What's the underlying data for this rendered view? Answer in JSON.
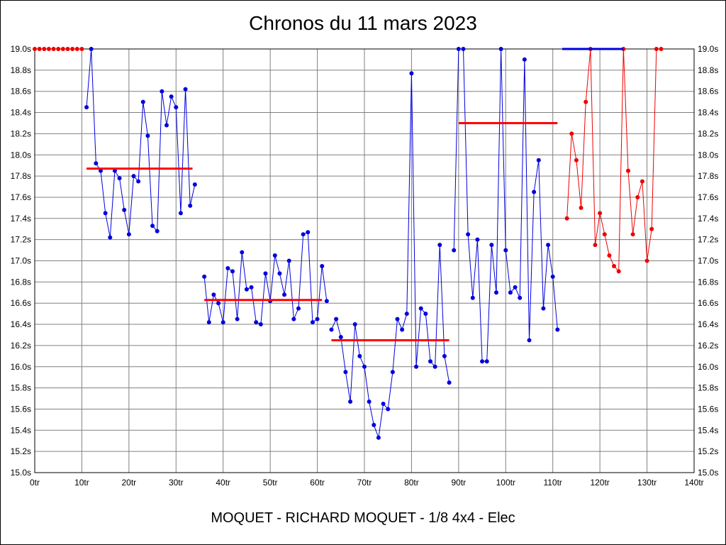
{
  "header": {
    "title": "Chronos du 11 mars 2023"
  },
  "footer": {
    "subtitle": "MOQUET - RICHARD MOQUET - 1/8 4x4 - Elec"
  },
  "colors": {
    "blue_series": "#0000dd",
    "red_series": "#ee0000",
    "average_red": "#ff0000",
    "average_blue": "#0000dd",
    "grid": "#808080",
    "axis": "#000000",
    "background": "#ffffff",
    "text": "#000000"
  },
  "chart_data": {
    "type": "line",
    "title": "Chronos du 11 mars 2023",
    "subtitle": "MOQUET - RICHARD MOQUET - 1/8 4x4 - Elec",
    "x_unit": "tr",
    "y_unit": "s",
    "xlim": [
      0,
      140
    ],
    "ylim": [
      15.0,
      19.0
    ],
    "x_tick_step": 10,
    "y_tick_step": 0.2,
    "grid": true,
    "legend": "none",
    "x_tick_labels": [
      "0tr",
      "10tr",
      "20tr",
      "30tr",
      "40tr",
      "50tr",
      "60tr",
      "70tr",
      "80tr",
      "90tr",
      "100tr",
      "110tr",
      "120tr",
      "130tr",
      "140tr"
    ],
    "y_tick_labels": [
      "15.0s",
      "15.2s",
      "15.4s",
      "15.6s",
      "15.8s",
      "16.0s",
      "16.2s",
      "16.4s",
      "16.6s",
      "16.8s",
      "17.0s",
      "17.2s",
      "17.4s",
      "17.6s",
      "17.8s",
      "18.0s",
      "18.2s",
      "18.4s",
      "18.6s",
      "18.8s",
      "19.0s"
    ],
    "series": [
      {
        "name": "segment-1-clipped-red",
        "color": "#ee0000",
        "points": [
          [
            0,
            19
          ],
          [
            1,
            19
          ],
          [
            2,
            19
          ],
          [
            3,
            19
          ],
          [
            4,
            19
          ],
          [
            5,
            19
          ],
          [
            6,
            19
          ],
          [
            7,
            19
          ],
          [
            8,
            19
          ],
          [
            9,
            19
          ],
          [
            10,
            19
          ]
        ]
      },
      {
        "name": "segment-2-blue",
        "color": "#0000dd",
        "points": [
          [
            11,
            18.45
          ],
          [
            12,
            19
          ],
          [
            13,
            17.92
          ],
          [
            14,
            17.85
          ],
          [
            15,
            17.45
          ],
          [
            16,
            17.22
          ],
          [
            17,
            17.85
          ],
          [
            18,
            17.78
          ],
          [
            19,
            17.48
          ],
          [
            20,
            17.25
          ],
          [
            21,
            17.8
          ],
          [
            22,
            17.75
          ],
          [
            23,
            18.5
          ],
          [
            24,
            18.18
          ],
          [
            25,
            17.33
          ],
          [
            26,
            17.28
          ],
          [
            27,
            18.6
          ],
          [
            28,
            18.28
          ],
          [
            29,
            18.55
          ],
          [
            30,
            18.45
          ],
          [
            31,
            17.45
          ],
          [
            32,
            18.62
          ],
          [
            33,
            17.52
          ],
          [
            34,
            17.72
          ]
        ]
      },
      {
        "name": "segment-3-blue",
        "color": "#0000dd",
        "points": [
          [
            36,
            16.85
          ],
          [
            37,
            16.42
          ],
          [
            38,
            16.68
          ],
          [
            39,
            16.6
          ],
          [
            40,
            16.42
          ],
          [
            41,
            16.93
          ],
          [
            42,
            16.9
          ],
          [
            43,
            16.45
          ],
          [
            44,
            17.08
          ],
          [
            45,
            16.73
          ],
          [
            46,
            16.75
          ],
          [
            47,
            16.42
          ],
          [
            48,
            16.4
          ],
          [
            49,
            16.88
          ],
          [
            50,
            16.62
          ],
          [
            51,
            17.05
          ],
          [
            52,
            16.88
          ],
          [
            53,
            16.68
          ],
          [
            54,
            17
          ],
          [
            55,
            16.45
          ],
          [
            56,
            16.55
          ],
          [
            57,
            17.25
          ],
          [
            58,
            17.27
          ],
          [
            59,
            16.42
          ],
          [
            60,
            16.45
          ],
          [
            61,
            16.95
          ],
          [
            62,
            16.62
          ]
        ]
      },
      {
        "name": "segment-4-blue",
        "color": "#0000dd",
        "points": [
          [
            63,
            16.35
          ],
          [
            64,
            16.45
          ],
          [
            65,
            16.28
          ],
          [
            66,
            15.95
          ],
          [
            67,
            15.67
          ],
          [
            68,
            16.4
          ],
          [
            69,
            16.1
          ],
          [
            70,
            16
          ],
          [
            71,
            15.67
          ],
          [
            72,
            15.45
          ],
          [
            73,
            15.33
          ],
          [
            74,
            15.65
          ],
          [
            75,
            15.6
          ],
          [
            76,
            15.95
          ],
          [
            77,
            16.45
          ],
          [
            78,
            16.35
          ],
          [
            79,
            16.5
          ],
          [
            80,
            18.77
          ],
          [
            81,
            16
          ],
          [
            82,
            16.55
          ],
          [
            83,
            16.5
          ],
          [
            84,
            16.05
          ],
          [
            85,
            16
          ],
          [
            86,
            17.15
          ],
          [
            87,
            16.1
          ],
          [
            88,
            15.85
          ]
        ]
      },
      {
        "name": "segment-5-blue",
        "color": "#0000dd",
        "points": [
          [
            89,
            17.1
          ],
          [
            90,
            19
          ],
          [
            91,
            19
          ],
          [
            92,
            17.25
          ],
          [
            93,
            16.65
          ],
          [
            94,
            17.2
          ],
          [
            95,
            16.05
          ],
          [
            96,
            16.05
          ],
          [
            97,
            17.15
          ],
          [
            98,
            16.7
          ],
          [
            99,
            19
          ],
          [
            100,
            17.1
          ],
          [
            101,
            16.7
          ],
          [
            102,
            16.75
          ],
          [
            103,
            16.65
          ],
          [
            104,
            18.9
          ],
          [
            105,
            16.25
          ],
          [
            106,
            17.65
          ],
          [
            107,
            17.95
          ],
          [
            108,
            16.55
          ],
          [
            109,
            17.15
          ],
          [
            110,
            16.85
          ],
          [
            111,
            16.35
          ]
        ]
      },
      {
        "name": "segment-6-red",
        "color": "#ee0000",
        "points": [
          [
            113,
            17.4
          ],
          [
            114,
            18.2
          ],
          [
            115,
            17.95
          ],
          [
            116,
            17.5
          ],
          [
            117,
            18.5
          ],
          [
            118,
            19
          ],
          [
            119,
            17.15
          ],
          [
            120,
            17.45
          ],
          [
            121,
            17.25
          ],
          [
            122,
            17.05
          ],
          [
            123,
            16.95
          ],
          [
            124,
            16.9
          ],
          [
            125,
            19
          ],
          [
            126,
            17.85
          ],
          [
            127,
            17.25
          ],
          [
            128,
            17.6
          ],
          [
            129,
            17.75
          ],
          [
            130,
            17
          ],
          [
            131,
            17.3
          ],
          [
            132,
            19
          ],
          [
            133,
            19
          ]
        ]
      }
    ],
    "average_lines": [
      {
        "value": 17.87,
        "from": 11,
        "to": 33.5,
        "color": "#ff0000"
      },
      {
        "value": 16.63,
        "from": 36,
        "to": 61,
        "color": "#ff0000"
      },
      {
        "value": 16.25,
        "from": 63,
        "to": 88,
        "color": "#ff0000"
      },
      {
        "value": 18.3,
        "from": 90,
        "to": 111,
        "color": "#ff0000"
      },
      {
        "value": 19,
        "from": 112,
        "to": 125,
        "color": "#0000dd"
      }
    ]
  }
}
